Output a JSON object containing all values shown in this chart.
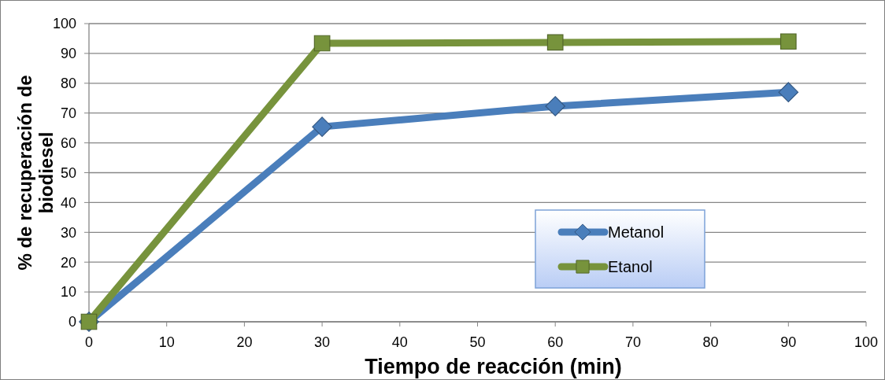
{
  "chart_data": {
    "type": "line",
    "xlabel": "Tiempo de reacción (min)",
    "ylabel": "% de recuperación de biodiesel",
    "x": [
      0,
      30,
      60,
      90
    ],
    "series": [
      {
        "name": "Metanol",
        "color": "#4a7ebb",
        "values": [
          0,
          65.4,
          72.3,
          77
        ],
        "marker": "diamond"
      },
      {
        "name": "Etanol",
        "color": "#77933c",
        "values": [
          0,
          93.4,
          93.7,
          94
        ],
        "marker": "square"
      }
    ],
    "xlim": [
      0,
      100
    ],
    "xticks": [
      0,
      10,
      20,
      30,
      40,
      50,
      60,
      70,
      80,
      90,
      100
    ],
    "ylim": [
      0,
      100
    ],
    "yticks": [
      0,
      10,
      20,
      30,
      40,
      50,
      60,
      70,
      80,
      90,
      100
    ],
    "grid": "y",
    "legend": "bottom right",
    "line_style": "solid"
  }
}
